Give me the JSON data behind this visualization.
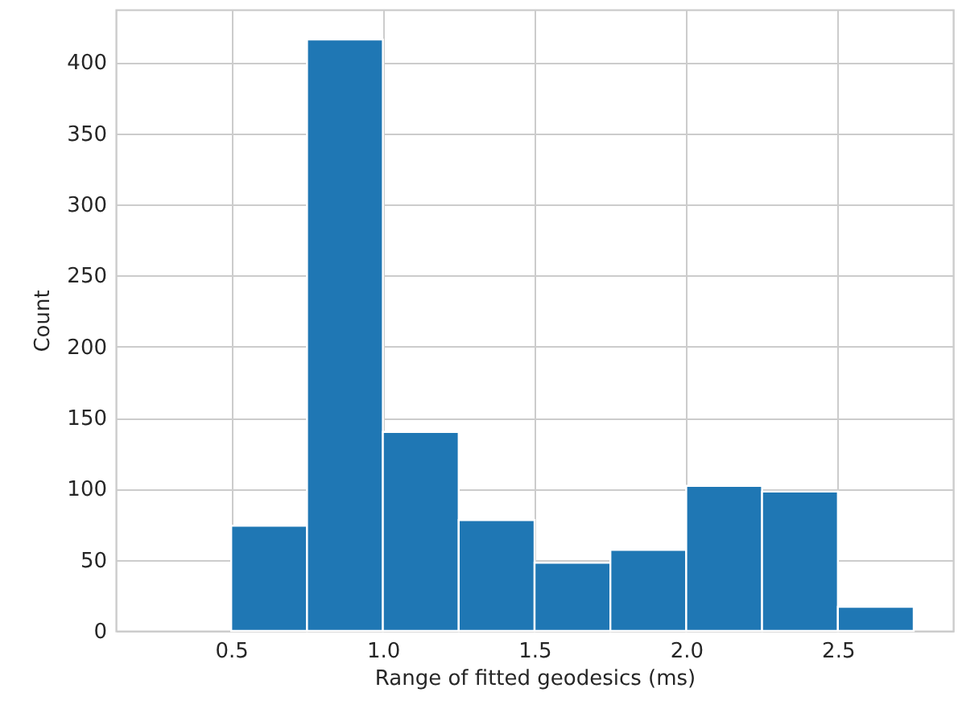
{
  "chart_data": {
    "type": "histogram",
    "xlabel": "Range of fitted geodesics (ms)",
    "ylabel": "Count",
    "bins": [
      0.5,
      0.75,
      1.0,
      1.25,
      1.5,
      1.75,
      2.0,
      2.25,
      2.5,
      2.75
    ],
    "values": [
      74,
      416,
      140,
      78,
      48,
      57,
      102,
      98,
      17
    ],
    "color": "#1f77b4",
    "xlim": [
      0.12,
      2.88
    ],
    "ylim": [
      0,
      437
    ],
    "xticks": [
      {
        "value": 0.5,
        "label": "0.5"
      },
      {
        "value": 1.0,
        "label": "1.0"
      },
      {
        "value": 1.5,
        "label": "1.5"
      },
      {
        "value": 2.0,
        "label": "2.0"
      },
      {
        "value": 2.5,
        "label": "2.5"
      }
    ],
    "yticks": [
      0,
      50,
      100,
      150,
      200,
      250,
      300,
      350,
      400
    ],
    "grid": true
  }
}
